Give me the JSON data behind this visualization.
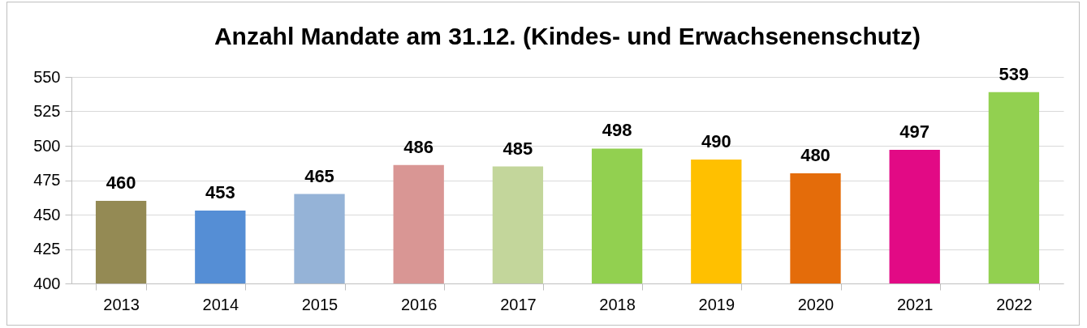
{
  "chart_data": {
    "type": "bar",
    "title": "Anzahl Mandate am 31.12. (Kindes- und Erwachsenenschutz)",
    "categories": [
      "2013",
      "2014",
      "2015",
      "2016",
      "2017",
      "2018",
      "2019",
      "2020",
      "2021",
      "2022"
    ],
    "values": [
      460,
      453,
      465,
      486,
      485,
      498,
      490,
      480,
      497,
      539
    ],
    "colors": [
      "#948a54",
      "#558ed5",
      "#95b3d7",
      "#d99694",
      "#c3d69b",
      "#92d050",
      "#ffc000",
      "#e46c0a",
      "#e20a85",
      "#92d050"
    ],
    "ylim": [
      400,
      550
    ],
    "yticks": [
      400,
      425,
      450,
      475,
      500,
      525,
      550
    ],
    "grid": "y",
    "data_labels": true
  }
}
